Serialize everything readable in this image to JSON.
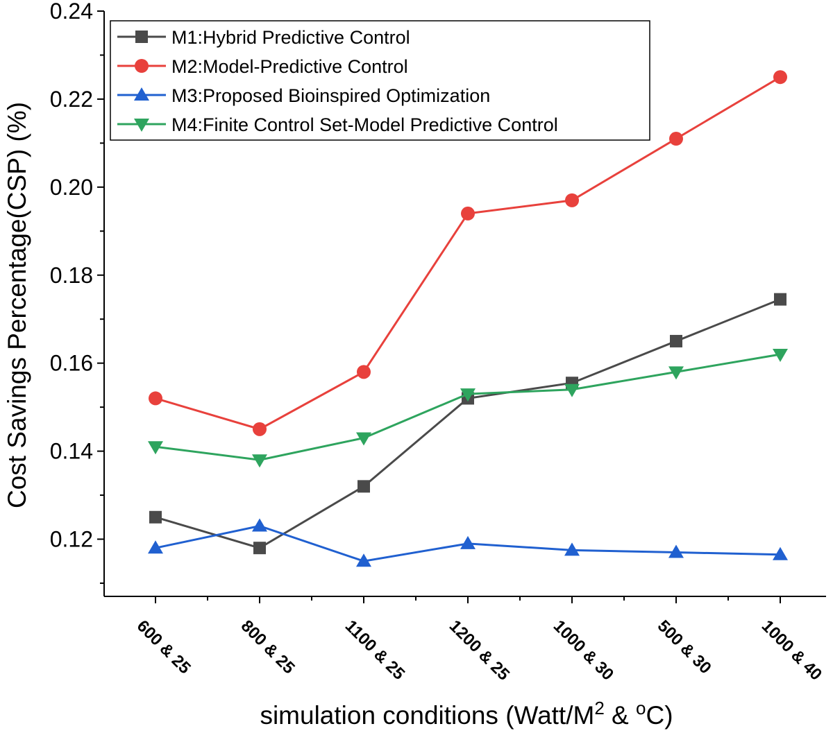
{
  "chart_data": {
    "type": "line",
    "title": "",
    "xlabel": {
      "prefix": "simulation conditions (Watt/M",
      "sup1": "2",
      "middle": " & ",
      "sup2": "o",
      "suffix": "C)"
    },
    "ylabel": "Cost Savings Percentage(CSP) (%)",
    "categories": [
      "600 & 25",
      "800 & 25",
      "1100 & 25",
      "1200 & 25",
      "1000 & 30",
      "500 & 30",
      "1000 & 40"
    ],
    "ylim": [
      0.107,
      0.24
    ],
    "yticks": [
      0.12,
      0.14,
      0.16,
      0.18,
      0.2,
      0.22,
      0.24
    ],
    "ytick_labels": [
      "0.12",
      "0.14",
      "0.16",
      "0.18",
      "0.20",
      "0.22",
      "0.24"
    ],
    "legend_position": "top-left",
    "series": [
      {
        "name": "M1:Hybrid Predictive Control",
        "color": "#4a4a4a",
        "marker": "square",
        "values": [
          0.125,
          0.118,
          0.132,
          0.152,
          0.1555,
          0.165,
          0.1745
        ]
      },
      {
        "name": "M2:Model-Predictive Control",
        "color": "#e8413c",
        "marker": "circle",
        "values": [
          0.152,
          0.145,
          0.158,
          0.194,
          0.197,
          0.211,
          0.225
        ]
      },
      {
        "name": "M3:Proposed Bioinspired Optimization",
        "color": "#2060d0",
        "marker": "triangle-up",
        "values": [
          0.118,
          0.123,
          0.115,
          0.119,
          0.1175,
          0.117,
          0.1165
        ]
      },
      {
        "name": "M4:Finite Control Set-Model Predictive Control",
        "color": "#2ea45e",
        "marker": "triangle-down",
        "values": [
          0.141,
          0.138,
          0.143,
          0.153,
          0.154,
          0.158,
          0.162
        ]
      }
    ]
  }
}
